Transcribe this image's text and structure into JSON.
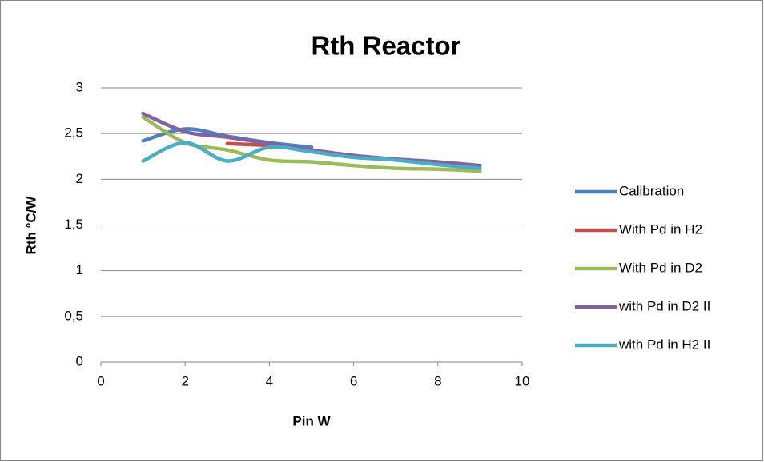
{
  "chart_data": {
    "type": "line",
    "title": "Rth Reactor",
    "x_label": "Pin W",
    "y_label": "Rth °C/W",
    "xlim": [
      0,
      10
    ],
    "xticks": [
      0,
      2,
      4,
      6,
      8,
      10
    ],
    "ylim": [
      0,
      3
    ],
    "yticks": [
      0,
      {
        "value": 0.5,
        "label": "0,5"
      },
      1,
      {
        "value": 1.5,
        "label": "1,5"
      },
      2,
      {
        "value": 2.5,
        "label": "2,5"
      },
      3
    ],
    "grid": true,
    "smooth": true,
    "legend": "right",
    "series": [
      {
        "name": "Calibration",
        "color": "#4f81bd",
        "x": [
          1,
          2,
          3,
          4,
          5
        ],
        "values": [
          2.42,
          2.55,
          2.47,
          2.4,
          2.35
        ]
      },
      {
        "name": "With Pd in H2",
        "color": "#c0504d",
        "x": [
          3,
          4
        ],
        "values": [
          2.39,
          2.37
        ]
      },
      {
        "name": "With Pd in D2",
        "color": "#9bbb59",
        "x": [
          1,
          2,
          3,
          4,
          5,
          6,
          7,
          8,
          9
        ],
        "values": [
          2.68,
          2.4,
          2.32,
          2.21,
          2.19,
          2.15,
          2.12,
          2.11,
          2.09
        ]
      },
      {
        "name": "with Pd in D2 II",
        "color": "#8064a2",
        "x": [
          1,
          2,
          3,
          4,
          5,
          6,
          7,
          8,
          9
        ],
        "values": [
          2.72,
          2.52,
          2.46,
          2.39,
          2.32,
          2.26,
          2.22,
          2.19,
          2.15
        ]
      },
      {
        "name": "with Pd in H2 II",
        "color": "#4bacc6",
        "x": [
          1,
          2,
          3,
          4,
          5,
          6,
          7,
          8,
          9
        ],
        "values": [
          2.2,
          2.4,
          2.2,
          2.35,
          2.3,
          2.24,
          2.21,
          2.16,
          2.12
        ]
      }
    ]
  }
}
